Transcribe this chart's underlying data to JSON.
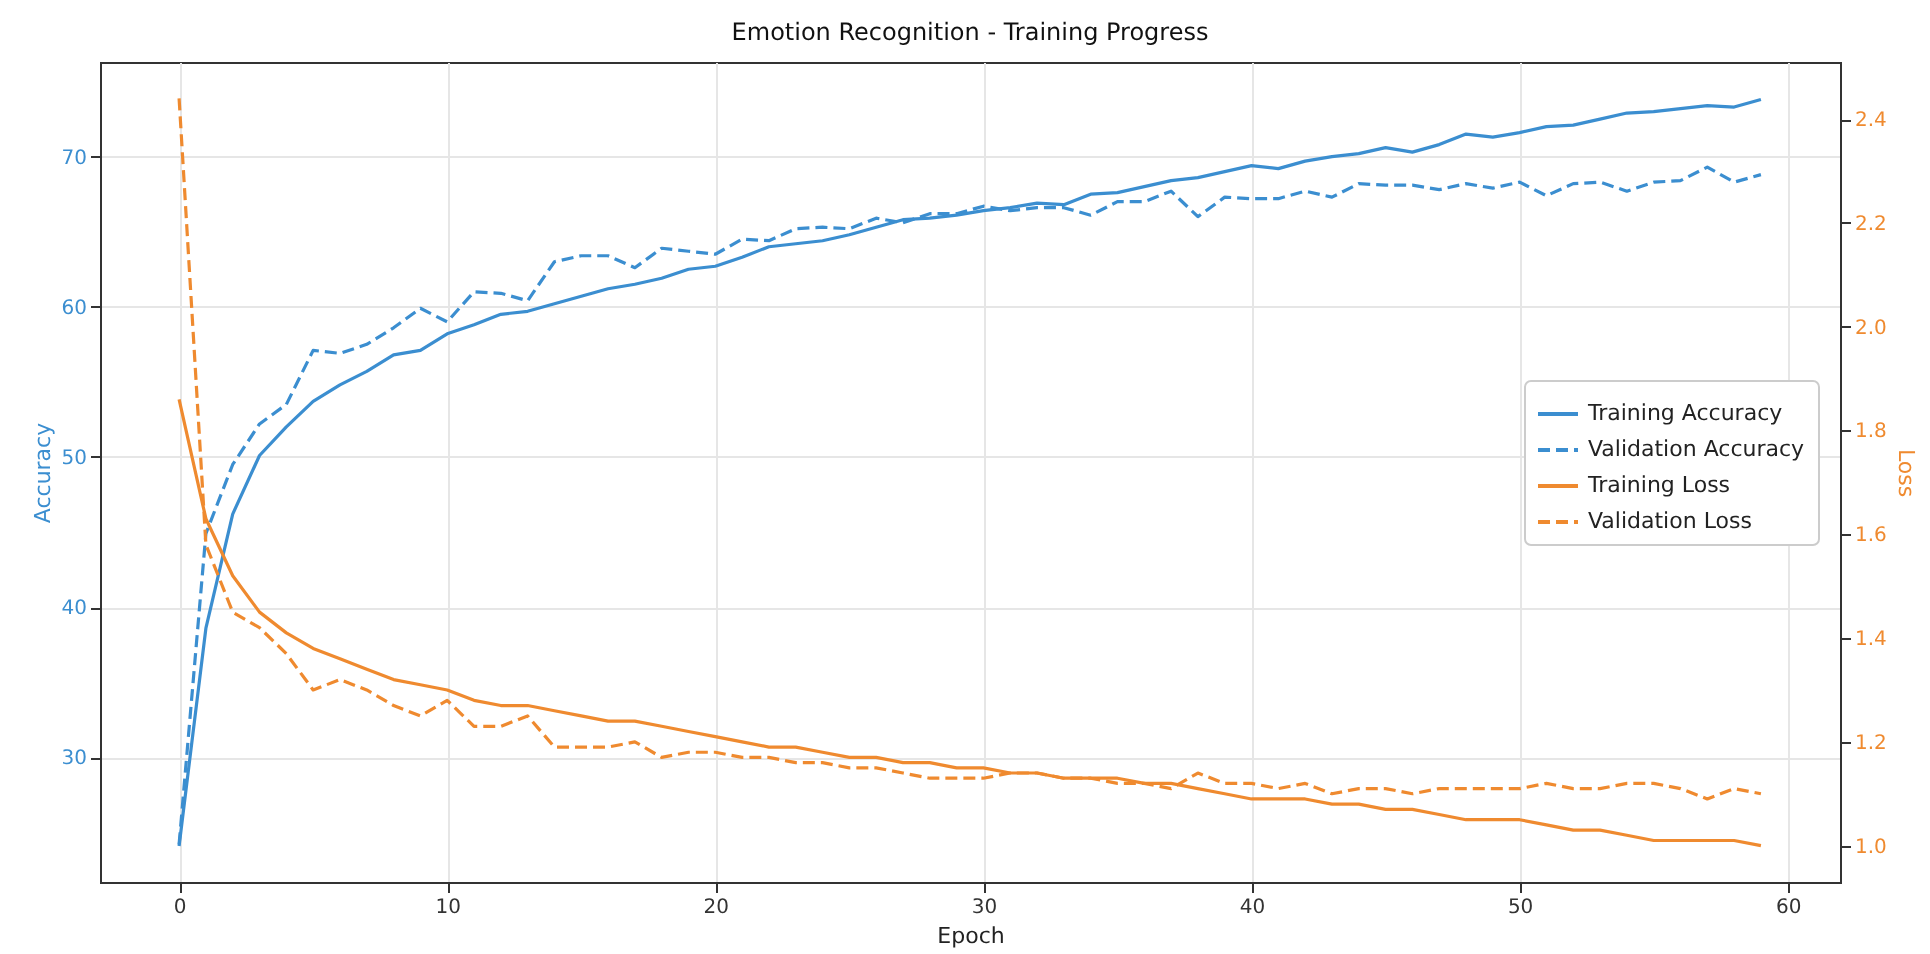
{
  "chart_data": {
    "type": "line",
    "title": "Emotion Recognition - Training Progress",
    "xlabel": "Epoch",
    "ylabel": "Accuracy",
    "y2label": "Loss",
    "x": [
      0,
      1,
      2,
      3,
      4,
      5,
      6,
      7,
      8,
      9,
      10,
      11,
      12,
      13,
      14,
      15,
      16,
      17,
      18,
      19,
      20,
      21,
      22,
      23,
      24,
      25,
      26,
      27,
      28,
      29,
      30,
      31,
      32,
      33,
      34,
      35,
      36,
      37,
      38,
      39,
      40,
      41,
      42,
      43,
      44,
      45,
      46,
      47,
      48,
      49,
      50,
      51,
      52,
      53,
      54,
      55,
      56,
      57,
      58,
      59
    ],
    "series": [
      {
        "name": "Training Accuracy",
        "color": "#3b8ed0",
        "line_style": "solid",
        "values": [
          24.1,
          38.6,
          46.2,
          50.1,
          52.0,
          53.7,
          54.8,
          55.7,
          56.8,
          57.1,
          58.2,
          58.8,
          59.5,
          59.7,
          60.2,
          60.7,
          61.2,
          61.5,
          61.9,
          62.5,
          62.7,
          63.3,
          64.0,
          64.2,
          64.4,
          64.8,
          65.3,
          65.8,
          65.9,
          66.1,
          66.4,
          66.6,
          66.9,
          66.8,
          67.5,
          67.6,
          68.0,
          68.4,
          68.6,
          69.0,
          69.4,
          69.2,
          69.7,
          70.0,
          70.2,
          70.6,
          70.3,
          70.8,
          71.5,
          71.3,
          71.6,
          72.0,
          72.1,
          72.5,
          72.9,
          73.0,
          73.2,
          73.4,
          73.3,
          73.8
        ]
      },
      {
        "name": "Validation Accuracy",
        "color": "#3b8ed0",
        "line_style": "dashed",
        "values": [
          24.2,
          44.9,
          49.5,
          52.2,
          53.5,
          57.1,
          56.9,
          57.5,
          58.6,
          59.9,
          59.0,
          61.0,
          60.9,
          60.4,
          63.0,
          63.4,
          63.4,
          62.6,
          63.9,
          63.7,
          63.5,
          64.5,
          64.4,
          65.2,
          65.3,
          65.2,
          65.9,
          65.6,
          66.2,
          66.2,
          66.7,
          66.4,
          66.6,
          66.6,
          66.1,
          67.0,
          67.0,
          67.7,
          66.0,
          67.3,
          67.2,
          67.2,
          67.7,
          67.3,
          68.2,
          68.1,
          68.1,
          67.8,
          68.2,
          67.9,
          68.3,
          67.4,
          68.2,
          68.3,
          67.7,
          68.3,
          68.4,
          69.3,
          68.3,
          68.8
        ]
      },
      {
        "name": "Training Loss",
        "color": "#ef8a2f",
        "line_style": "solid",
        "axis": "y2",
        "values": [
          1.86,
          1.63,
          1.52,
          1.45,
          1.41,
          1.38,
          1.36,
          1.34,
          1.32,
          1.31,
          1.3,
          1.28,
          1.27,
          1.27,
          1.26,
          1.25,
          1.24,
          1.24,
          1.23,
          1.22,
          1.21,
          1.2,
          1.19,
          1.19,
          1.18,
          1.17,
          1.17,
          1.16,
          1.16,
          1.15,
          1.15,
          1.14,
          1.14,
          1.13,
          1.13,
          1.13,
          1.12,
          1.12,
          1.11,
          1.1,
          1.09,
          1.09,
          1.09,
          1.08,
          1.08,
          1.07,
          1.07,
          1.06,
          1.05,
          1.05,
          1.05,
          1.04,
          1.03,
          1.03,
          1.02,
          1.01,
          1.01,
          1.01,
          1.01,
          1.0
        ]
      },
      {
        "name": "Validation Loss",
        "color": "#ef8a2f",
        "line_style": "dashed",
        "axis": "y2",
        "values": [
          2.44,
          1.58,
          1.45,
          1.42,
          1.37,
          1.3,
          1.32,
          1.3,
          1.27,
          1.25,
          1.28,
          1.23,
          1.23,
          1.25,
          1.19,
          1.19,
          1.19,
          1.2,
          1.17,
          1.18,
          1.18,
          1.17,
          1.17,
          1.16,
          1.16,
          1.15,
          1.15,
          1.14,
          1.13,
          1.13,
          1.13,
          1.14,
          1.14,
          1.13,
          1.13,
          1.12,
          1.12,
          1.11,
          1.14,
          1.12,
          1.12,
          1.11,
          1.12,
          1.1,
          1.11,
          1.11,
          1.1,
          1.11,
          1.11,
          1.11,
          1.11,
          1.12,
          1.11,
          1.11,
          1.12,
          1.12,
          1.11,
          1.09,
          1.11,
          1.1
        ]
      }
    ],
    "xlim": [
      -2.95,
      61.95
    ],
    "xticks": [
      0,
      10,
      20,
      30,
      40,
      50,
      60
    ],
    "ylim": [
      21.7,
      76.3
    ],
    "yticks": [
      30,
      40,
      50,
      60,
      70
    ],
    "y2lim": [
      0.93,
      2.51
    ],
    "y2ticks": [
      {
        "value": 1,
        "label": "1.0"
      },
      {
        "value": 1.2,
        "label": "1.2"
      },
      {
        "value": 1.4,
        "label": "1.4"
      },
      {
        "value": 1.6,
        "label": "1.6"
      },
      {
        "value": 1.8,
        "label": "1.8"
      },
      {
        "value": 2,
        "label": "2.0"
      },
      {
        "value": 2.2,
        "label": "2.2"
      },
      {
        "value": 2.4,
        "label": "2.4"
      }
    ],
    "grid": true,
    "legend": "right"
  }
}
